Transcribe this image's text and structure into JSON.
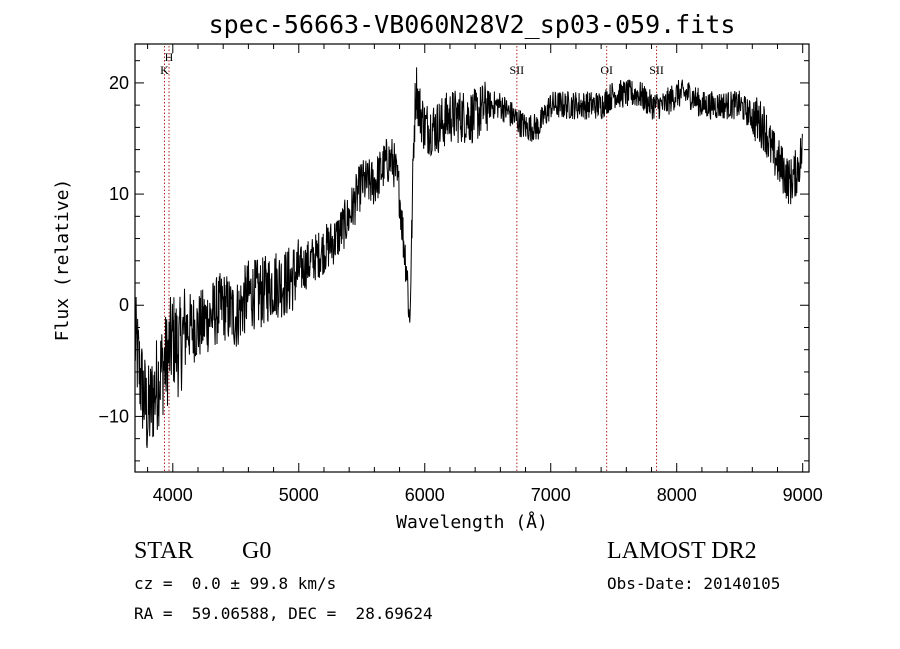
{
  "chart_data": {
    "type": "line",
    "title": "spec-56663-VB060N28V2_sp03-059.fits",
    "xlabel": "Wavelength (Å)",
    "ylabel": "Flux (relative)",
    "xlim": [
      3700,
      9050
    ],
    "ylim": [
      -15,
      23.5
    ],
    "x_ticks": [
      4000,
      5000,
      6000,
      7000,
      8000,
      9000
    ],
    "y_ticks": [
      -10,
      0,
      10,
      20
    ],
    "series": [
      {
        "x": [
          3700,
          3750,
          3800,
          3850,
          3900,
          3950,
          4000,
          4050,
          4100,
          4200,
          4300,
          4400,
          4500,
          4600,
          4700,
          4800,
          4900,
          5000,
          5100,
          5200,
          5300,
          5400,
          5500,
          5600,
          5700,
          5750,
          5800,
          5830,
          5860,
          5880,
          5900,
          5910,
          5920,
          5930,
          5950,
          6000,
          6100,
          6200,
          6300,
          6400,
          6500,
          6600,
          6700,
          6800,
          6900,
          7000,
          7100,
          7200,
          7300,
          7400,
          7500,
          7600,
          7700,
          7800,
          7900,
          8000,
          8100,
          8200,
          8300,
          8400,
          8500,
          8600,
          8700,
          8750,
          8800,
          8850,
          8900,
          8950,
          9000
        ],
        "y": [
          -3,
          -7,
          -10,
          -8,
          -6,
          -5,
          -3,
          -4,
          -2,
          -2,
          -1,
          0,
          -1,
          1,
          1,
          2,
          2,
          3,
          4,
          5,
          6,
          8,
          11,
          11,
          13,
          13,
          10,
          6,
          3,
          -2,
          8,
          14,
          17,
          20,
          18,
          16,
          16,
          17,
          17,
          17,
          18,
          18,
          17,
          16,
          16,
          18,
          18,
          18,
          18,
          18,
          19,
          19,
          19,
          18,
          18,
          19,
          19,
          18,
          18,
          18,
          18,
          17,
          16,
          14,
          13,
          12,
          11,
          12,
          14
        ]
      }
    ],
    "line_markers": [
      {
        "label": "H",
        "x": 3970
      },
      {
        "label": "K",
        "x": 3934
      },
      {
        "label": "SII",
        "x": 6731
      },
      {
        "label": "OI",
        "x": 7444
      },
      {
        "label": "SII",
        "x": 7840
      }
    ]
  },
  "info": {
    "object_class": "STAR",
    "subclass": "G0",
    "survey": "LAMOST DR2",
    "redshift": "cz =  0.0 ± 99.8 km/s",
    "obs_date": "Obs-Date: 20140105",
    "coords": "RA =  59.06588, DEC =  28.69624"
  }
}
